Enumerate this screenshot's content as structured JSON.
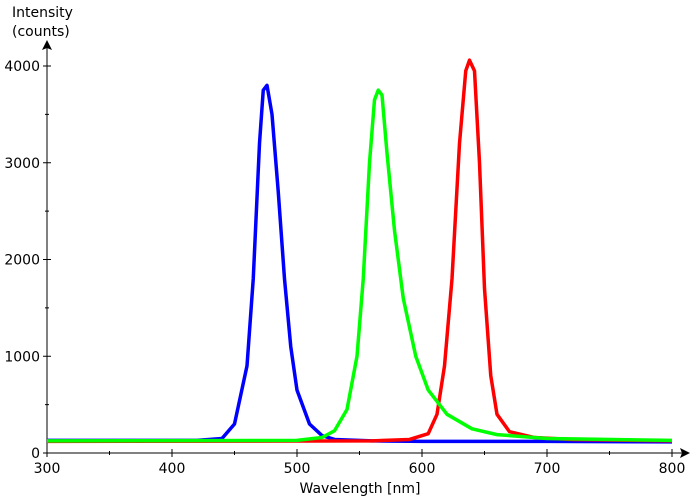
{
  "chart_data": {
    "type": "line",
    "x_label": "Wavelength [nm]",
    "y_label": [
      "Intensity",
      "(counts)"
    ],
    "xlim": [
      300,
      800
    ],
    "ylim": [
      0,
      4000
    ],
    "xticks": [
      300,
      400,
      500,
      600,
      700,
      800
    ],
    "yticks": [
      0,
      1000,
      2000,
      3000,
      4000
    ],
    "xminorticks": [
      350,
      450,
      550,
      650,
      750
    ],
    "yminorticks": [
      500,
      1500,
      2500,
      3500
    ],
    "series": [
      {
        "color": "#0000ff",
        "x": [
          300,
          420,
          440,
          450,
          460,
          465,
          470,
          473,
          476,
          480,
          485,
          490,
          495,
          500,
          510,
          520,
          530,
          560,
          600,
          700,
          800
        ],
        "values": [
          130,
          130,
          150,
          300,
          900,
          1800,
          3200,
          3750,
          3800,
          3500,
          2700,
          1800,
          1100,
          650,
          300,
          180,
          140,
          125,
          120,
          120,
          115
        ]
      },
      {
        "color": "#ff0000",
        "x": [
          300,
          560,
          590,
          605,
          612,
          618,
          624,
          630,
          635,
          638,
          642,
          646,
          650,
          655,
          660,
          670,
          690,
          720,
          800
        ],
        "values": [
          120,
          125,
          140,
          200,
          400,
          900,
          1800,
          3200,
          3950,
          4060,
          3950,
          3000,
          1700,
          800,
          400,
          220,
          160,
          140,
          125
        ]
      },
      {
        "color": "#00ff00",
        "x": [
          300,
          500,
          520,
          530,
          540,
          548,
          553,
          558,
          562,
          565,
          568,
          572,
          578,
          585,
          595,
          605,
          620,
          640,
          660,
          700,
          800
        ],
        "values": [
          125,
          130,
          160,
          230,
          450,
          1000,
          1800,
          3000,
          3650,
          3750,
          3700,
          3100,
          2300,
          1600,
          1000,
          650,
          400,
          250,
          190,
          150,
          130
        ]
      }
    ]
  }
}
